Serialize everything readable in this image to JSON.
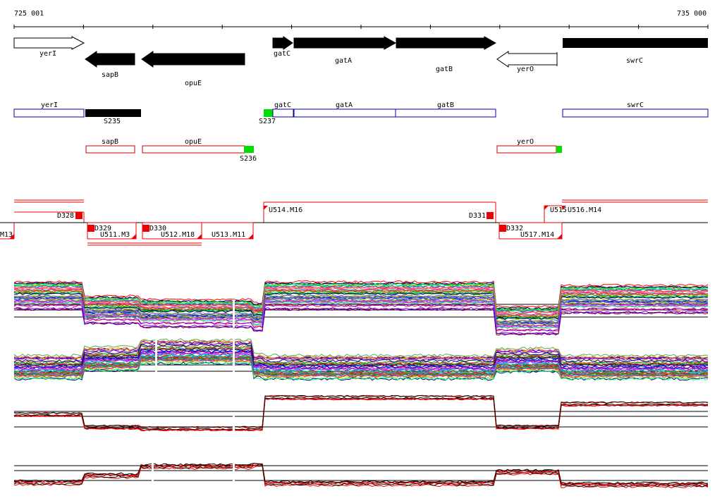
{
  "ruler": {
    "start_label": "725 001",
    "end_label": "735 000"
  },
  "genes": [
    {
      "name": "yerI",
      "strand": "+",
      "style": "open"
    },
    {
      "name": "sapB",
      "strand": "-",
      "style": "filled"
    },
    {
      "name": "opuE",
      "strand": "-",
      "style": "filled"
    },
    {
      "name": "gatC",
      "strand": "+",
      "style": "filled"
    },
    {
      "name": "gatA",
      "strand": "+",
      "style": "filled"
    },
    {
      "name": "gatB",
      "strand": "+",
      "style": "filled"
    },
    {
      "name": "yerO",
      "strand": "-",
      "style": "open"
    },
    {
      "name": "swrC",
      "strand": "+",
      "style": "filled"
    }
  ],
  "forward_features": [
    {
      "label": "yerI"
    },
    {
      "label": "gatC"
    },
    {
      "label": "gatA"
    },
    {
      "label": "gatB"
    },
    {
      "label": "swrC"
    }
  ],
  "forward_signals": [
    {
      "label": "S235",
      "color": "#000000"
    },
    {
      "label": "S237",
      "color": "#00dd00"
    }
  ],
  "reverse_features": [
    {
      "label": "sapB"
    },
    {
      "label": "opuE"
    },
    {
      "label": "yerO"
    }
  ],
  "reverse_signals": [
    {
      "label": "S236",
      "color": "#00dd00"
    }
  ],
  "segments": {
    "forward": [
      "U514.M16",
      "U515",
      "U516.M14"
    ],
    "reverse": [
      "M13",
      "U511.M3",
      "U512.M18",
      "U513.M11",
      "U517.M14"
    ],
    "downshifts_above": [
      "D328",
      "D331"
    ],
    "downshifts_below": [
      "D329",
      "D330",
      "D332"
    ]
  },
  "colors": {
    "forward_box": "#0000aa",
    "reverse_box": "#cc0000",
    "segment": "#ee0000",
    "marker": "#ee0000",
    "axis": "#000000"
  }
}
